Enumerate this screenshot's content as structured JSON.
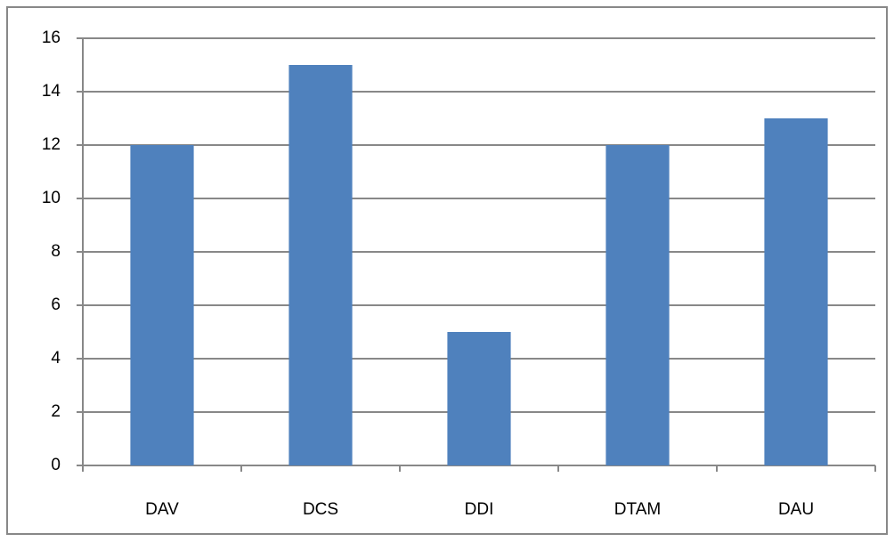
{
  "chart_data": {
    "type": "bar",
    "categories": [
      "DAV",
      "DCS",
      "DDI",
      "DTAM",
      "DAU"
    ],
    "values": [
      12,
      15,
      5,
      12,
      13
    ],
    "color": "#4f81bd",
    "ylim": [
      0,
      16
    ],
    "yticks": [
      0,
      2,
      4,
      6,
      8,
      10,
      12,
      14,
      16
    ],
    "grid": true
  }
}
